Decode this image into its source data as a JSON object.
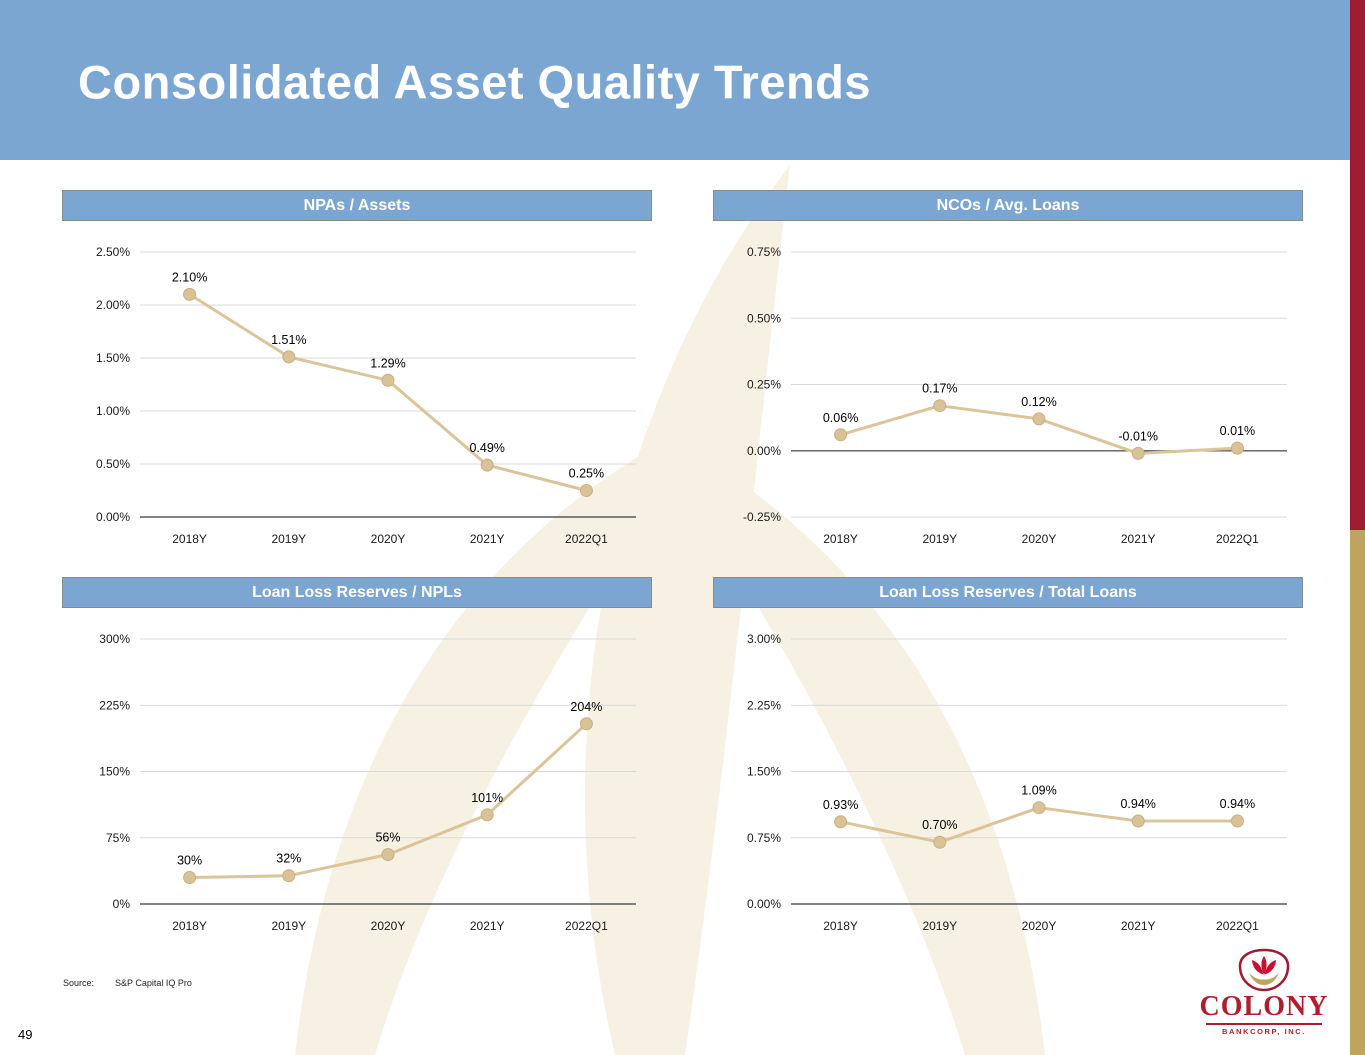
{
  "slide": {
    "title": "Consolidated Asset Quality Trends",
    "page_number": "49",
    "source_label": "Source:",
    "source_value": "S&P Capital IQ Pro",
    "logo": {
      "name": "COLONY",
      "subtitle": "BANKCORP, INC."
    }
  },
  "colors": {
    "header_blue": "#7CA6D2",
    "panel_blue": "#7CA6D2",
    "line_tan": "#DBC49A",
    "marker_fill": "#D9C298",
    "marker_stroke": "#C9AF7F",
    "grid_gray": "#D9D9D9",
    "axis_gray": "#595959",
    "stripe_maroon": "#9E1B32",
    "stripe_gold": "#C0A35E",
    "logo_red": "#B01E2E"
  },
  "chart_data": [
    {
      "type": "line",
      "title": "NPAs / Assets",
      "categories": [
        "2018Y",
        "2019Y",
        "2020Y",
        "2021Y",
        "2022Q1"
      ],
      "values": [
        2.1,
        1.51,
        1.29,
        0.49,
        0.25
      ],
      "point_labels": [
        "2.10%",
        "1.51%",
        "1.29%",
        "0.49%",
        "0.25%"
      ],
      "ylim": [
        0,
        2.5
      ],
      "yticks": [
        0,
        0.5,
        1.0,
        1.5,
        2.0,
        2.5
      ],
      "ytick_labels": [
        "0.00%",
        "0.50%",
        "1.00%",
        "1.50%",
        "2.00%",
        "2.50%"
      ],
      "grid": true,
      "legend": "none"
    },
    {
      "type": "line",
      "title": "NCOs / Avg. Loans",
      "categories": [
        "2018Y",
        "2019Y",
        "2020Y",
        "2021Y",
        "2022Q1"
      ],
      "values": [
        0.06,
        0.17,
        0.12,
        -0.01,
        0.01
      ],
      "point_labels": [
        "0.06%",
        "0.17%",
        "0.12%",
        "-0.01%",
        "0.01%"
      ],
      "ylim": [
        -0.25,
        0.75
      ],
      "yticks": [
        -0.25,
        0,
        0.25,
        0.5,
        0.75
      ],
      "ytick_labels": [
        "-0.25%",
        "0.00%",
        "0.25%",
        "0.50%",
        "0.75%"
      ],
      "grid": true,
      "legend": "none"
    },
    {
      "type": "line",
      "title": "Loan Loss Reserves / NPLs",
      "categories": [
        "2018Y",
        "2019Y",
        "2020Y",
        "2021Y",
        "2022Q1"
      ],
      "values": [
        30,
        32,
        56,
        101,
        204
      ],
      "point_labels": [
        "30%",
        "32%",
        "56%",
        "101%",
        "204%"
      ],
      "ylim": [
        0,
        300
      ],
      "yticks": [
        0,
        75,
        150,
        225,
        300
      ],
      "ytick_labels": [
        "0%",
        "75%",
        "150%",
        "225%",
        "300%"
      ],
      "grid": true,
      "legend": "none"
    },
    {
      "type": "line",
      "title": "Loan Loss Reserves / Total Loans",
      "categories": [
        "2018Y",
        "2019Y",
        "2020Y",
        "2021Y",
        "2022Q1"
      ],
      "values": [
        0.93,
        0.7,
        1.09,
        0.94,
        0.94
      ],
      "point_labels": [
        "0.93%",
        "0.70%",
        "1.09%",
        "0.94%",
        "0.94%"
      ],
      "ylim": [
        0,
        3.0
      ],
      "yticks": [
        0,
        0.75,
        1.5,
        2.25,
        3.0
      ],
      "ytick_labels": [
        "0.00%",
        "0.75%",
        "1.50%",
        "2.25%",
        "3.00%"
      ],
      "grid": true,
      "legend": "none"
    }
  ]
}
